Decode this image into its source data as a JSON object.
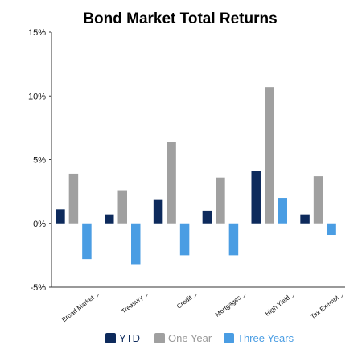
{
  "chart_data": {
    "type": "bar",
    "title": "Bond Market Total Returns",
    "categories": [
      "Broad Market",
      "Treasury",
      "Credit",
      "Mortgages",
      "High Yield",
      "Tax Exempt"
    ],
    "series": [
      {
        "name": "YTD",
        "color": "#0d2a5c",
        "values": [
          1.1,
          0.7,
          1.9,
          1.0,
          4.1,
          0.7
        ]
      },
      {
        "name": "One Year",
        "color": "#a0a0a0",
        "values": [
          3.9,
          2.6,
          6.4,
          3.6,
          10.7,
          3.7
        ]
      },
      {
        "name": "Three Years",
        "color": "#4a9de3",
        "values": [
          -2.8,
          -3.2,
          -2.5,
          -2.5,
          2.0,
          -0.9
        ]
      }
    ],
    "ylim": [
      -5,
      15
    ],
    "yticks": [
      "15%",
      "10%",
      "5%",
      "0%",
      "-5%"
    ],
    "ytick_values": [
      15,
      10,
      5,
      0,
      -5
    ],
    "xlabel": "",
    "ylabel": "",
    "legend_position": "bottom",
    "grid": false
  }
}
